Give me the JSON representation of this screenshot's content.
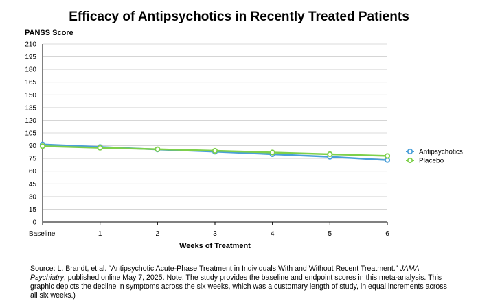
{
  "chart_data": {
    "type": "line",
    "title": "Efficacy of Antipsychotics in Recently Treated Patients",
    "ylabel": "PANSS Score",
    "xlabel": "Weeks of Treatment",
    "categories": [
      "Baseline",
      "1",
      "2",
      "3",
      "4",
      "5",
      "6"
    ],
    "yticks": [
      "0",
      "15",
      "30",
      "45",
      "60",
      "75",
      "90",
      "105",
      "120",
      "135",
      "150",
      "165",
      "180",
      "195",
      "210"
    ],
    "ylim": [
      0,
      210
    ],
    "grid": true,
    "legend_position": "right",
    "series": [
      {
        "name": "Antipsychotics",
        "color": "#4a9fd9",
        "values": [
          91.5,
          88.5,
          85.5,
          83.0,
          80.0,
          77.0,
          73.0
        ]
      },
      {
        "name": "Placebo",
        "color": "#7ed04b",
        "values": [
          89.5,
          87.5,
          85.8,
          84.0,
          82.0,
          80.0,
          78.0
        ]
      }
    ]
  },
  "source": {
    "prefix": "Source:  L. Brandt, et al. “Antipsychotic Acute-Phase Treatment in Individuals With and Without Recent Treatment.” ",
    "journal": "JAMA Psychiatry",
    "suffix": ", published online May 7, 2025. Note: The study provides the baseline and endpoint scores in this meta-analysis. This graphic depicts the decline in symptoms across the six weeks, which was a customary length of study, in equal increments across all six weeks.)"
  }
}
